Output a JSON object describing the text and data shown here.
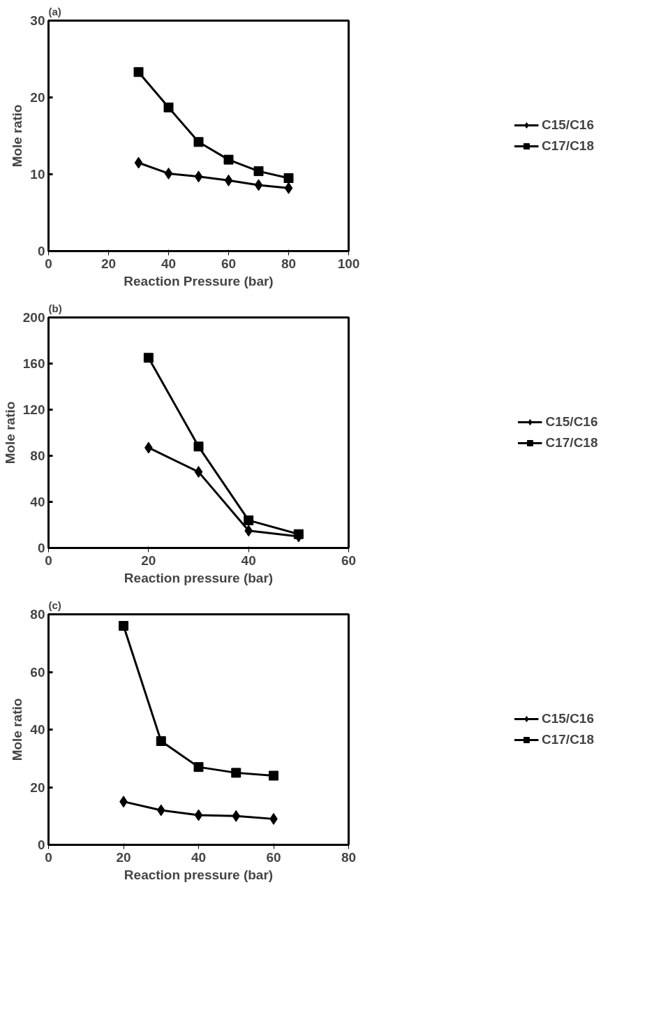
{
  "chart_data": [
    {
      "type": "line",
      "title": "(a)",
      "xlabel": "Reaction Pressure (bar)",
      "ylabel": "Mole ratio",
      "x": [
        30,
        40,
        50,
        60,
        70,
        80
      ],
      "xlim": [
        0,
        100
      ],
      "xticks": [
        0,
        20,
        40,
        60,
        80,
        100
      ],
      "ylim": [
        0,
        30
      ],
      "yticks": [
        0,
        10,
        20,
        30
      ],
      "legend": "right",
      "series": [
        {
          "name": "C15/C16",
          "color": "#000000",
          "marker": "diamond",
          "values": [
            11.5,
            10.1,
            9.7,
            9.2,
            8.6,
            8.2
          ]
        },
        {
          "name": "C17/C18",
          "color": "#000000",
          "marker": "square",
          "values": [
            23.3,
            18.7,
            14.2,
            11.9,
            10.4,
            9.5
          ]
        }
      ]
    },
    {
      "type": "line",
      "title": "(b)",
      "xlabel": "Reaction pressure (bar)",
      "ylabel": "Mole ratio",
      "x": [
        20,
        30,
        40,
        50
      ],
      "xlim": [
        0,
        60
      ],
      "xticks": [
        0,
        20,
        40,
        60
      ],
      "ylim": [
        0,
        200
      ],
      "yticks": [
        0,
        40,
        80,
        120,
        160,
        200
      ],
      "legend": "right",
      "series": [
        {
          "name": "C15/C16",
          "color": "#000000",
          "marker": "diamond",
          "values": [
            87,
            66,
            15,
            10
          ]
        },
        {
          "name": "C17/C18",
          "color": "#000000",
          "marker": "square",
          "values": [
            165,
            88,
            24,
            12
          ]
        }
      ]
    },
    {
      "type": "line",
      "title": "(c)",
      "xlabel": "Reaction pressure (bar)",
      "ylabel": "Mole ratio",
      "x": [
        20,
        30,
        40,
        50,
        60
      ],
      "xlim": [
        0,
        80
      ],
      "xticks": [
        0,
        20,
        40,
        60,
        80
      ],
      "ylim": [
        0,
        80
      ],
      "yticks": [
        0,
        20,
        40,
        60,
        80
      ],
      "legend": "right",
      "series": [
        {
          "name": "C15/C16",
          "color": "#000000",
          "marker": "diamond",
          "values": [
            15,
            12,
            10.3,
            10,
            9
          ]
        },
        {
          "name": "C17/C18",
          "color": "#000000",
          "marker": "square",
          "values": [
            76,
            36,
            27,
            25,
            24
          ]
        }
      ]
    }
  ]
}
